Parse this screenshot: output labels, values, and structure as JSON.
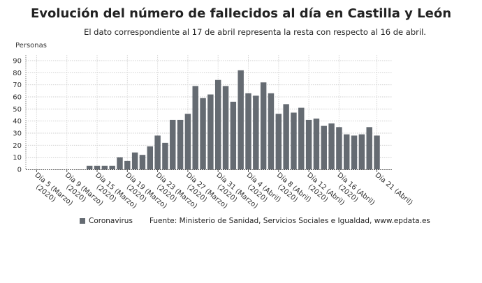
{
  "chart_data": {
    "type": "bar",
    "title": "Evolución del número de fallecidos al día en Castilla y León",
    "subtitle": "El dato correspondiente al 17 de abril representa la resta con respecto al 16 de abril.",
    "ylabel": "Personas",
    "xlabel": "",
    "ylim": [
      0,
      90
    ],
    "yticks": [
      0,
      10,
      20,
      30,
      40,
      50,
      60,
      70,
      80,
      90
    ],
    "grid": true,
    "legend_position": "bottom",
    "bar_color": "#656b72",
    "x_tick_labels": [
      {
        "index": 0,
        "line1": "Día 5 (Marzo)",
        "line2": "(2020)"
      },
      {
        "index": 4,
        "line1": "Día 9 (Marzo)",
        "line2": "(2020)"
      },
      {
        "index": 8,
        "line1": "Día 15 (Marzo)",
        "line2": "(2020)"
      },
      {
        "index": 12,
        "line1": "Día 19 (Marzo)",
        "line2": "(2020)"
      },
      {
        "index": 16,
        "line1": "Día 23 (Marzo)",
        "line2": "(2020)"
      },
      {
        "index": 20,
        "line1": "Día 27 (Marzo)",
        "line2": "(2020)"
      },
      {
        "index": 24,
        "line1": "Día 31 (Marzo)",
        "line2": "(2020)"
      },
      {
        "index": 28,
        "line1": "Día 4 (Abril)",
        "line2": "(2020)"
      },
      {
        "index": 32,
        "line1": "Día 8 (Abril)",
        "line2": "(2020)"
      },
      {
        "index": 36,
        "line1": "Día 12 (Abril)",
        "line2": "(2020)"
      },
      {
        "index": 40,
        "line1": "Día 16 (Abril)",
        "line2": "(2020)"
      },
      {
        "index": 45,
        "line1": "Día 21 (Abril)",
        "line2": ""
      }
    ],
    "series": [
      {
        "name": "Coronavirus",
        "values": [
          0,
          0,
          0,
          0,
          0,
          0,
          0,
          3,
          3,
          3,
          3,
          10,
          7,
          14,
          12,
          19,
          28,
          22,
          41,
          41,
          46,
          69,
          59,
          62,
          74,
          69,
          56,
          82,
          63,
          61,
          72,
          63,
          46,
          54,
          47,
          51,
          41,
          42,
          36,
          38,
          35,
          29,
          28,
          29,
          35,
          28
        ]
      }
    ]
  },
  "legend": {
    "series_label": "Coronavirus"
  },
  "source": "Fuente: Ministerio de Sanidad, Servicios Sociales e Igualdad, www.epdata.es"
}
